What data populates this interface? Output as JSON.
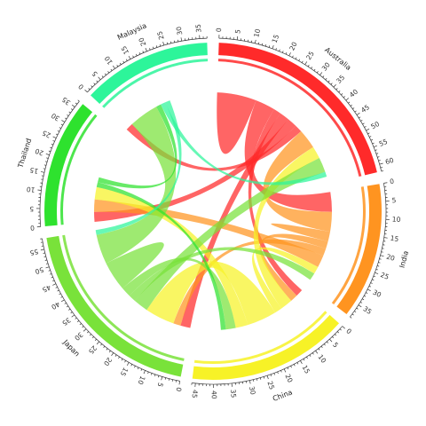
{
  "chart_data": {
    "type": "chord",
    "title": "",
    "tick_step": 5,
    "groups": [
      {
        "name": "Australia",
        "total": 62,
        "color": "#ff2a2a"
      },
      {
        "name": "India",
        "total": 39,
        "color": "#ff9420"
      },
      {
        "name": "China",
        "total": 46,
        "color": "#f7f227"
      },
      {
        "name": "Japan",
        "total": 58,
        "color": "#79e23a"
      },
      {
        "name": "Thailand",
        "total": 37,
        "color": "#2ee22e"
      },
      {
        "name": "Malaysia",
        "total": 37,
        "color": "#2df59a"
      }
    ],
    "links": [
      {
        "source": "Australia",
        "target": "Australia",
        "value": 8,
        "color": "#ff2a2a"
      },
      {
        "source": "Australia",
        "target": "India",
        "value": 8,
        "color": "#ff2a2a"
      },
      {
        "source": "Australia",
        "target": "China",
        "value": 3,
        "color": "#ff2a2a"
      },
      {
        "source": "Australia",
        "target": "Japan",
        "value": 4,
        "color": "#ff2a2a"
      },
      {
        "source": "Australia",
        "target": "Thailand",
        "value": 4,
        "color": "#ff2a2a"
      },
      {
        "source": "Australia",
        "target": "Malaysia",
        "value": 3,
        "color": "#ff2a2a"
      },
      {
        "source": "India",
        "target": "Australia",
        "value": 8,
        "color": "#ff9420"
      },
      {
        "source": "India",
        "target": "India",
        "value": 2,
        "color": "#ff9420"
      },
      {
        "source": "India",
        "target": "China",
        "value": 3,
        "color": "#ff9420"
      },
      {
        "source": "India",
        "target": "Japan",
        "value": 3,
        "color": "#ff9420"
      },
      {
        "source": "India",
        "target": "Thailand",
        "value": 5,
        "color": "#ff9420"
      },
      {
        "source": "China",
        "target": "Australia",
        "value": 5,
        "color": "#f7f227"
      },
      {
        "source": "China",
        "target": "India",
        "value": 3,
        "color": "#f7f227"
      },
      {
        "source": "China",
        "target": "Japan",
        "value": 12,
        "color": "#f7f227"
      },
      {
        "source": "China",
        "target": "Thailand",
        "value": 5,
        "color": "#f7f227"
      },
      {
        "source": "Japan",
        "target": "Australia",
        "value": 6,
        "color": "#79e23a"
      },
      {
        "source": "Japan",
        "target": "India",
        "value": 3,
        "color": "#79e23a"
      },
      {
        "source": "Japan",
        "target": "China",
        "value": 4,
        "color": "#79e23a"
      },
      {
        "source": "Japan",
        "target": "Japan",
        "value": 6,
        "color": "#79e23a"
      },
      {
        "source": "Japan",
        "target": "Malaysia",
        "value": 12,
        "color": "#79e23a"
      },
      {
        "source": "Thailand",
        "target": "China",
        "value": 2,
        "color": "#2ee22e"
      },
      {
        "source": "Thailand",
        "target": "Malaysia",
        "value": 2,
        "color": "#2ee22e"
      },
      {
        "source": "Malaysia",
        "target": "Australia",
        "value": 2,
        "color": "#2df59a"
      },
      {
        "source": "Malaysia",
        "target": "Japan",
        "value": 2,
        "color": "#2df59a"
      }
    ]
  }
}
